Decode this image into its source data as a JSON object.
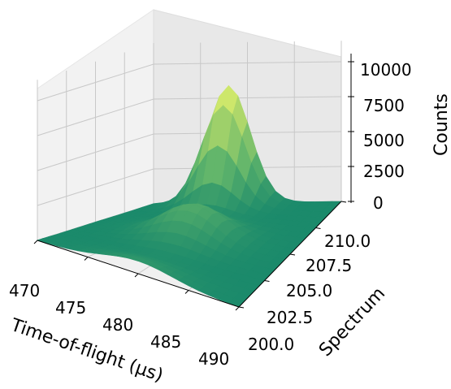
{
  "chart_data": {
    "type": "surface3d",
    "x_ticks": [
      "470",
      "475",
      "480",
      "485",
      "490"
    ],
    "y_ticks": [
      "200.0",
      "202.5",
      "205.0",
      "207.5",
      "210.0"
    ],
    "z_ticks": [
      "0",
      "2500",
      "5000",
      "7500",
      "10000"
    ],
    "xlabel": "Time-of-flight (μs)",
    "ylabel": "Spectrum",
    "zlabel": "Counts",
    "xlim": [
      470,
      490
    ],
    "ylim": [
      200,
      210
    ],
    "zlim": [
      0,
      10000
    ],
    "grid": true,
    "peaks": [
      {
        "x": 478,
        "y": 210,
        "z": 8400
      },
      {
        "x": 480,
        "y": 205,
        "z": 2400
      },
      {
        "x": 480,
        "y": 200,
        "z": 900
      }
    ],
    "colormap": [
      "#1b8a6b",
      "#5fb46b",
      "#a8d46a",
      "#f5fb6c"
    ]
  }
}
